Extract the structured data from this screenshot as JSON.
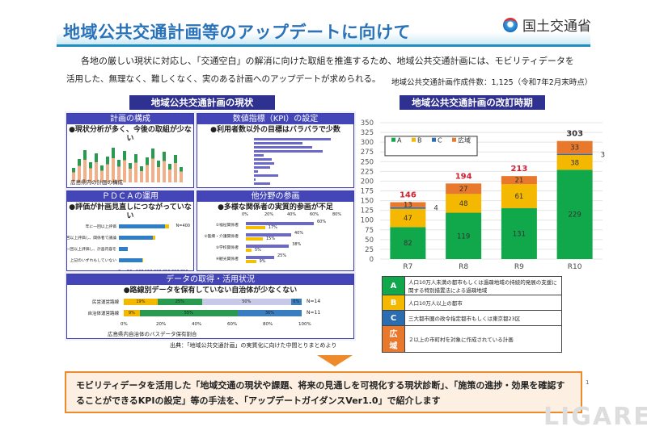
{
  "header": {
    "title": "地域公共交通計画等のアップデートに向けて",
    "ministry": "国土交通省"
  },
  "intro": {
    "line1": "各地の厳しい現状に対応し、「交通空白」の解消に向けた取組を推進するため、地域公共交通計画には、モビリティデータを",
    "line2": "活用した、無理なく、難しくなく、実のある計画へのアップデートが求められる。",
    "count": "地域公共交通計画作成件数：1,125（令和7年2月末時点）"
  },
  "left": {
    "heading": "地域公共交通計画の現状",
    "panels": [
      {
        "header": "計画の構成",
        "title": "●現状分析が多く、今後の取組が少ない",
        "caption": "広島県内の計画の構成"
      },
      {
        "header": "数値指標（KPI）の設定",
        "title": "●利用者数以外の目標はバラバラで少数"
      },
      {
        "header": "ＰＤＣＡの運用",
        "title": "●評価が計画見直しにつながっていない",
        "n": "N=400",
        "rows": [
          {
            "label": "年に一回以上評価",
            "v1": 260,
            "v2": 20
          },
          {
            "label": "年に一回以上評価し、関係者で議論",
            "v1": 190,
            "v2": 15
          },
          {
            "label": "年に一回以上評価し、計画内容を",
            "v1": 50,
            "v2": 0
          },
          {
            "label": "上記のいずれもしていない",
            "v1": 130,
            "v2": 5
          }
        ],
        "axis": [
          "0",
          "50",
          "100",
          "150",
          "200",
          "250",
          "300",
          "350"
        ]
      },
      {
        "header": "他分野の参画",
        "title": "●多様な関係者の実質的参画が不足",
        "axis": [
          "0%",
          "20%",
          "40%",
          "60%",
          "80%"
        ],
        "rows": [
          {
            "label": "①福祉関係者",
            "v1": 60,
            "v2": 17
          },
          {
            "label": "②医療・介護関係者",
            "v1": 40,
            "v2": 15
          },
          {
            "label": "③学校関係者",
            "v1": 38,
            "v2": 5
          },
          {
            "label": "④観光関係者",
            "v1": 25,
            "v2": 9
          }
        ]
      },
      {
        "header": "データの取得・活用状況",
        "title": "●路線別データを保有していない自治体が少なくない",
        "caption": "広島県内自治体のバスデータ保有割合",
        "rows": [
          {
            "label": "民営運営路線",
            "segments": [
              19,
              25,
              50,
              6
            ],
            "n": "N=14"
          },
          {
            "label": "自治体運営路線",
            "segments": [
              9,
              55,
              0,
              36
            ],
            "n": "N=11"
          }
        ],
        "axis": [
          "0%",
          "20%",
          "40%",
          "60%",
          "80%",
          "100%"
        ]
      }
    ]
  },
  "right": {
    "heading": "地域公共交通計画の改訂時期"
  },
  "chart_data": {
    "type": "bar",
    "stacked": true,
    "categories": [
      "R7",
      "R8",
      "R9",
      "R10"
    ],
    "series": [
      {
        "name": "A",
        "values": [
          82,
          119,
          131,
          229
        ],
        "color": "#10a84a"
      },
      {
        "name": "B",
        "values": [
          47,
          48,
          61,
          38
        ],
        "color": "#f5b800"
      },
      {
        "name": "C",
        "values": [
          4,
          0,
          0,
          3
        ],
        "color": "#2a6db0"
      },
      {
        "name": "広域",
        "values": [
          13,
          27,
          21,
          33
        ],
        "color": "#e8782c"
      }
    ],
    "totals": [
      "146",
      "194",
      "213",
      "303"
    ],
    "ylim": [
      0,
      350
    ],
    "yticks": [
      0,
      25,
      50,
      75,
      100,
      125,
      150,
      175,
      200,
      225,
      250,
      275,
      300,
      325,
      350
    ],
    "legend": "top-left",
    "grid": true
  },
  "legend_table": [
    {
      "key": "A",
      "text": "人口10万人未満の都市もしくは過疎地域の持続的発展の支援に関する特別措置法による過疎地域",
      "color": "#10a84a"
    },
    {
      "key": "B",
      "text": "人口10万人以上の都市",
      "color": "#f5b800"
    },
    {
      "key": "C",
      "text": "三大都市圏の政令指定都市もしくは東京都23区",
      "color": "#2a6db0"
    },
    {
      "key": "広域",
      "text": "２以上の市町村を対象に作成されている計画",
      "color": "#e8782c"
    }
  ],
  "source": "出典：「地域公共交通計画」の実質化に向けた中間とりまとめより",
  "bottom": {
    "text": "モビリティデータを活用した「地域交通の現状や課題、将来の見通しを可視化する現状診断」、「施策の進捗・効果を確認することができるKPIの設定」等の手法を、「アップデートガイダンスVer1.0」で紹介します"
  },
  "page_number": "1",
  "watermark": "LIGARE"
}
